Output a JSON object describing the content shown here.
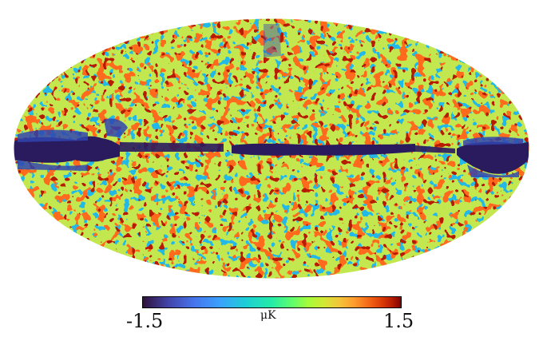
{
  "map": {
    "projection": "mollweide",
    "colormap": "turbo",
    "features": [
      "galactic-plane-negative-band",
      "noise-texture"
    ]
  },
  "colorbar": {
    "min_label": "-1.5",
    "max_label": "1.5",
    "unit_label": "μK",
    "min_value": -1.5,
    "max_value": 1.5
  }
}
